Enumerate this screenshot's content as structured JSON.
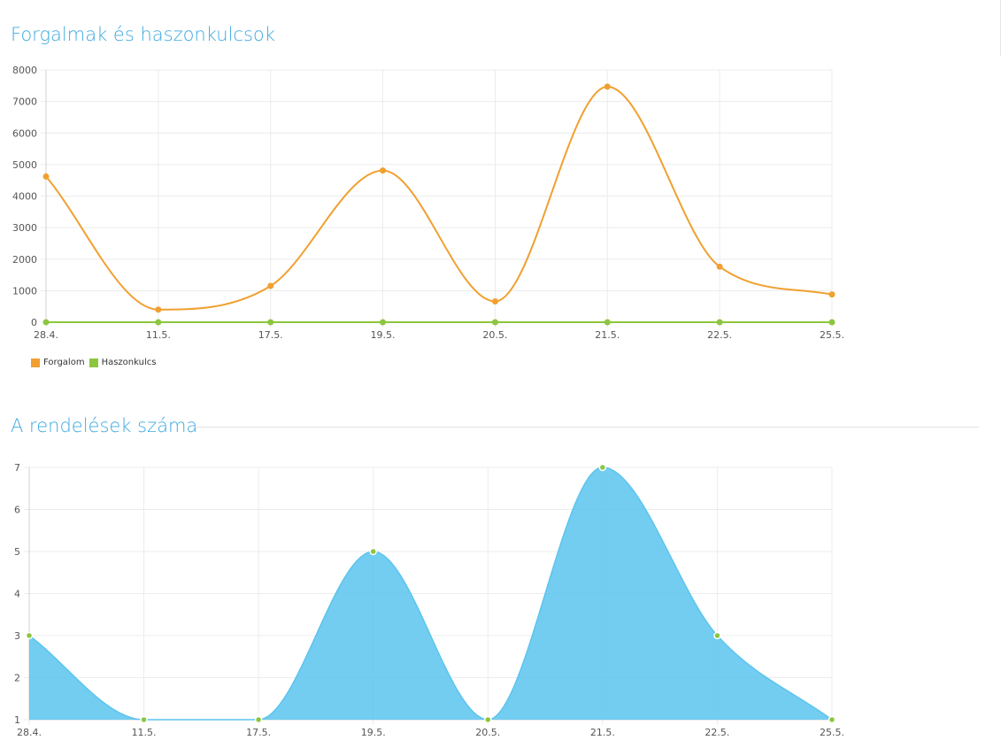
{
  "sections": {
    "revenue_title": "Forgalmak és haszonkulcsok",
    "orders_title": "A rendelések száma"
  },
  "chart_data": [
    {
      "type": "line",
      "categories": [
        "28.4.",
        "11.5.",
        "17.5.",
        "19.5.",
        "20.5.",
        "21.5.",
        "22.5.",
        "25.5."
      ],
      "series": [
        {
          "name": "Forgalom",
          "values": [
            4620,
            400,
            1150,
            4810,
            660,
            7470,
            1760,
            880
          ],
          "color": "#f0a030"
        },
        {
          "name": "Haszonkulcs",
          "values": [
            0,
            0,
            0,
            0,
            0,
            0,
            0,
            0
          ],
          "color": "#8cc63f"
        }
      ],
      "yticks": [
        "0",
        "1000",
        "2000",
        "3000",
        "4000",
        "5000",
        "6000",
        "7000",
        "8000"
      ],
      "ylim": [
        0,
        8000
      ],
      "grid": true,
      "legend": "bottom-left",
      "title": "",
      "xlabel": "",
      "ylabel": ""
    },
    {
      "type": "area",
      "categories": [
        "28.4.",
        "11.5.",
        "17.5.",
        "19.5.",
        "20.5.",
        "21.5.",
        "22.5.",
        "25.5."
      ],
      "series": [
        {
          "values": [
            3,
            1,
            1,
            5,
            1,
            7,
            3,
            1
          ],
          "color": "#5bc4ef",
          "point_color": "#8cc63f"
        }
      ],
      "yticks": [
        "1",
        "2",
        "3",
        "4",
        "5",
        "6",
        "7"
      ],
      "ylim": [
        1,
        7
      ],
      "grid": true,
      "title": "",
      "xlabel": "",
      "ylabel": ""
    }
  ]
}
